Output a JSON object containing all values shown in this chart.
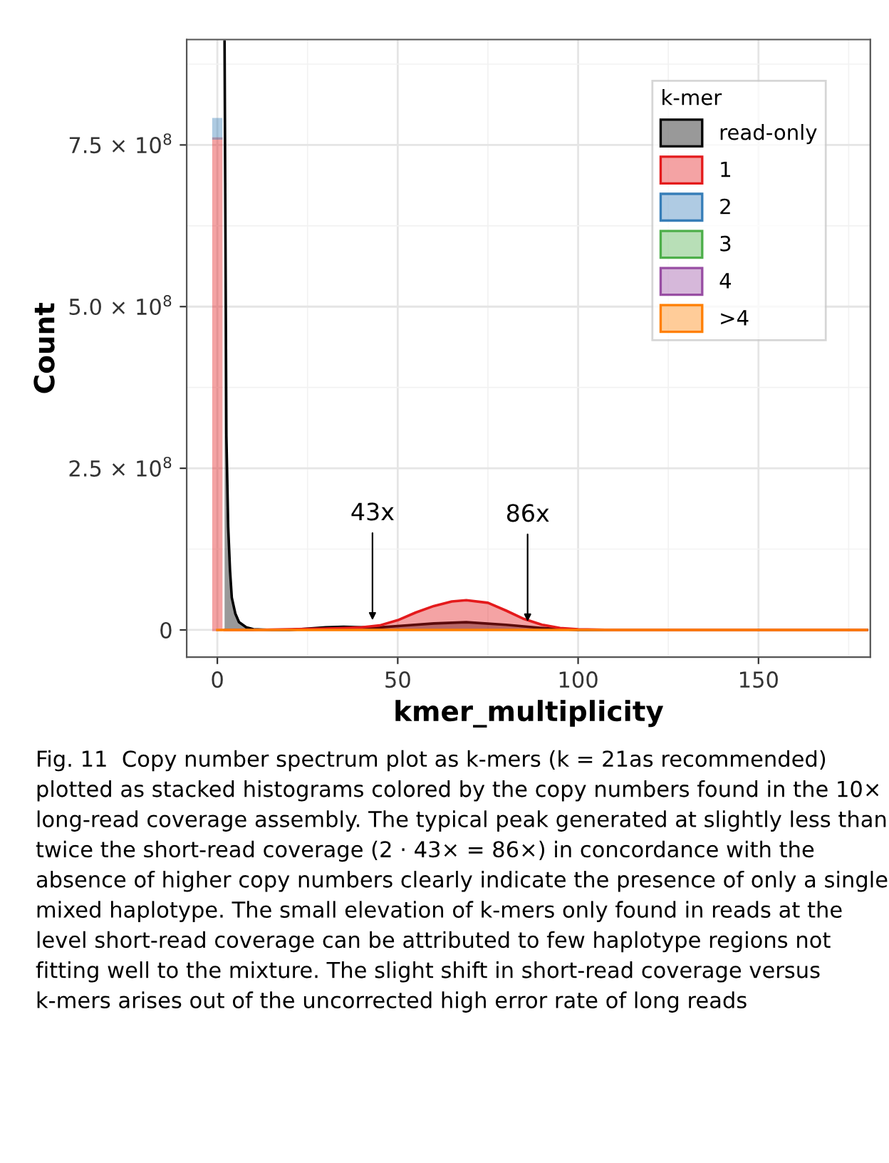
{
  "chart_data": {
    "type": "area",
    "xlabel": "kmer_multiplicity",
    "ylabel": "Count",
    "legend_title": "k-mer",
    "xlim": [
      -8.5,
      181
    ],
    "xticks": [
      0,
      50,
      100,
      150,
      {
        "value": 25,
        "label": null
      },
      {
        "value": 75,
        "label": null
      },
      {
        "value": 125,
        "label": null
      },
      {
        "value": 175,
        "label": null
      }
    ],
    "ylim": [
      -42000000,
      913000000
    ],
    "yticks": [
      {
        "value": 0,
        "label": "0"
      },
      {
        "value": 250000000,
        "label": "2.5 × 10$^{8}$"
      },
      {
        "value": 500000000,
        "label": "5.0 × 10$^{8}$"
      },
      {
        "value": 750000000,
        "label": "7.5 × 10$^{8}$"
      },
      {
        "value": 125000000,
        "label": null
      },
      {
        "value": 375000000,
        "label": null
      },
      {
        "value": 625000000,
        "label": null
      },
      {
        "value": 875000000,
        "label": null
      }
    ],
    "grid": true,
    "legend": "top right",
    "series": [
      {
        "type": "bar",
        "color": "#e41a1c",
        "x": [
          0
        ],
        "values": [
          760000000
        ]
      },
      {
        "type": "bar",
        "color": "#377eb8",
        "x": [
          0
        ],
        "base": [
          760000000
        ],
        "values": [
          30000000
        ]
      },
      {
        "name": "read-only",
        "color": "#000000",
        "x": [
          2,
          2.5,
          3,
          3.5,
          4,
          5,
          6,
          8,
          10,
          15,
          20,
          30,
          35,
          40,
          45,
          50,
          60,
          69,
          80,
          90,
          100,
          110,
          180
        ],
        "values": [
          910000000,
          300000000,
          160000000,
          93000000,
          50000000,
          25000000,
          12000000,
          4000000,
          1000000,
          0,
          0,
          4000000,
          5000000,
          4000000,
          4000000,
          6000000,
          10000000,
          12000000,
          8000000,
          3000000,
          0,
          0,
          0
        ]
      },
      {
        "name": "1",
        "color": "#e41a1c",
        "x": [
          2,
          10,
          20,
          30,
          35,
          40,
          45,
          50,
          55,
          60,
          65,
          69,
          75,
          80,
          85,
          90,
          95,
          100,
          110,
          180
        ],
        "values": [
          0,
          0,
          1000000,
          2000000,
          3000000,
          4000000,
          7000000,
          15000000,
          27000000,
          37000000,
          44000000,
          46000000,
          42000000,
          30000000,
          17000000,
          8000000,
          3000000,
          1000000,
          0,
          0
        ]
      },
      {
        "name": "2",
        "color": "#377eb8"
      },
      {
        "name": "3",
        "color": "#4daf4a"
      },
      {
        "name": "4",
        "color": "#984ea3"
      },
      {
        "name": ">4",
        "type": "line",
        "color": "#ff7f00",
        "x": [
          0,
          180
        ],
        "values": [
          0,
          0
        ]
      }
    ],
    "annotations": [
      {
        "text": "43x",
        "x": 43,
        "y": 15000000
      },
      {
        "text": "86x",
        "x": 86,
        "y": 13000000
      },
      "Fig. 11  Copy number spectrum plot as k-mers (k = 21as recommended) plotted as stacked histograms colored by the copy numbers found in the 10× long-read coverage assembly. The typical peak generated at slightly less than twice the short-read coverage (2 · 43× = 86×) in concordance with the absence of higher copy numbers clearly indicate the presence of only a single mixed haplotype. The small elevation of k-mers only found in reads at the level short-read coverage can be attributed to few haplotype regions not fitting well to the mixture. The slight shift in short-read coverage versus k-mers arises out of the uncorrected high error rate of long reads"
    ]
  }
}
